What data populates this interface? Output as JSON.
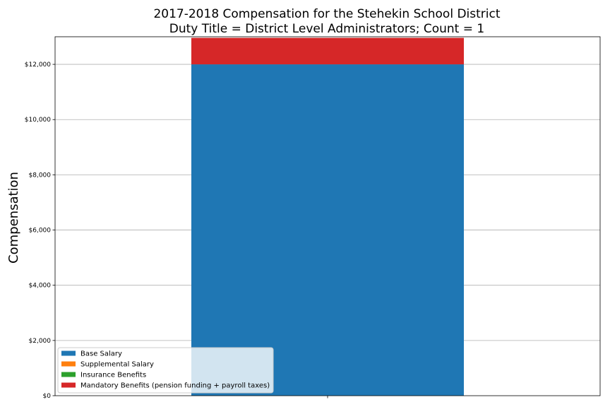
{
  "chart_data": {
    "type": "bar",
    "stacked": true,
    "title": "2017-2018 Compensation for the Stehekin School District",
    "subtitle": "Duty Title = District Level Administrators; Count = 1",
    "xlabel": "",
    "ylabel": "Compensation",
    "categories": [
      ""
    ],
    "ylim": [
      0,
      13000
    ],
    "yticks": [
      0,
      2000,
      4000,
      6000,
      8000,
      10000,
      12000
    ],
    "ytick_labels": [
      "$0",
      "$2,000",
      "$4,000",
      "$6,000",
      "$8,000",
      "$10,000",
      "$12,000"
    ],
    "grid": "y",
    "legend_position": "lower-left",
    "series": [
      {
        "name": "Base Salary",
        "values": [
          12000
        ],
        "color": "#1f77b4"
      },
      {
        "name": "Supplemental Salary",
        "values": [
          0
        ],
        "color": "#ff7f0e"
      },
      {
        "name": "Insurance Benefits",
        "values": [
          0
        ],
        "color": "#2ca02c"
      },
      {
        "name": "Mandatory Benefits (pension funding + payroll taxes)",
        "values": [
          960
        ],
        "color": "#d62728"
      }
    ]
  }
}
